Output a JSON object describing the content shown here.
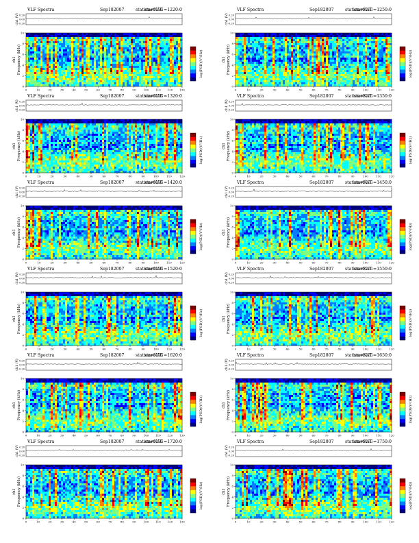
{
  "page": {
    "title": "VLF spectra grid, station KAG, Sep 18 2007"
  },
  "common": {
    "header_left": "VLF Spectra",
    "date": "Sep182007",
    "station": "station=KAG",
    "start_prefix": "start  UT  =",
    "ch_label": "ch1 (V)",
    "ch_ticks": [
      "0.20",
      "0.00",
      "-0.20"
    ],
    "y_label": "ch1\nFrequency (kHz)",
    "y_ticks": [
      "0",
      "2",
      "4",
      "6",
      "8",
      "10"
    ],
    "x_label": "Time (sec)",
    "cbar_label": "log(PSD)(V²/Hz)",
    "colormap": [
      "#00007f",
      "#0000ff",
      "#007fff",
      "#00ffff",
      "#7fff7f",
      "#ffff00",
      "#ff7f00",
      "#ff0000",
      "#7f0000"
    ]
  },
  "panels": [
    {
      "start": "1220:0",
      "xmax": 130,
      "x_ticks": [
        "0",
        "10",
        "20",
        "30",
        "40",
        "50",
        "60",
        "70",
        "80",
        "90",
        "100",
        "110",
        "120",
        "130"
      ]
    },
    {
      "start": "1250:0",
      "xmax": 120,
      "x_ticks": [
        "0",
        "10",
        "20",
        "30",
        "40",
        "50",
        "60",
        "70",
        "80",
        "90",
        "100",
        "110",
        "120"
      ]
    },
    {
      "start": "1320:0",
      "xmax": 120,
      "x_ticks": [
        "0",
        "10",
        "20",
        "30",
        "40",
        "50",
        "60",
        "70",
        "80",
        "90",
        "100",
        "110",
        "120"
      ]
    },
    {
      "start": "1350:0",
      "xmax": 120,
      "x_ticks": [
        "0",
        "10",
        "20",
        "30",
        "40",
        "50",
        "60",
        "70",
        "80",
        "90",
        "100",
        "110",
        "120"
      ]
    },
    {
      "start": "1420:0",
      "xmax": 120,
      "x_ticks": [
        "0",
        "10",
        "20",
        "30",
        "40",
        "50",
        "60",
        "70",
        "80",
        "90",
        "100",
        "110",
        "120"
      ]
    },
    {
      "start": "1450:0",
      "xmax": 120,
      "x_ticks": [
        "0",
        "10",
        "20",
        "30",
        "40",
        "50",
        "60",
        "70",
        "80",
        "90",
        "100",
        "110",
        "120"
      ]
    },
    {
      "start": "1520:0",
      "xmax": 120,
      "x_ticks": [
        "0",
        "10",
        "20",
        "30",
        "40",
        "50",
        "60",
        "70",
        "80",
        "90",
        "100",
        "110",
        "120"
      ]
    },
    {
      "start": "1550:0",
      "xmax": 120,
      "x_ticks": [
        "0",
        "10",
        "20",
        "30",
        "40",
        "50",
        "60",
        "70",
        "80",
        "90",
        "100",
        "110",
        "120"
      ]
    },
    {
      "start": "1620:0",
      "xmax": 130,
      "x_ticks": [
        "0",
        "10",
        "20",
        "30",
        "40",
        "50",
        "60",
        "70",
        "80",
        "90",
        "100",
        "110",
        "120",
        "130"
      ]
    },
    {
      "start": "1650:0",
      "xmax": 120,
      "x_ticks": [
        "0",
        "10",
        "20",
        "30",
        "40",
        "50",
        "60",
        "70",
        "80",
        "90",
        "100",
        "110",
        "120"
      ]
    },
    {
      "start": "1720:0",
      "xmax": 130,
      "x_ticks": [
        "0",
        "10",
        "20",
        "30",
        "40",
        "50",
        "60",
        "70",
        "80",
        "90",
        "100",
        "110",
        "120",
        "130"
      ]
    },
    {
      "start": "1750:0",
      "xmax": 120,
      "x_ticks": [
        "0",
        "10",
        "20",
        "30",
        "40",
        "50",
        "60",
        "70",
        "80",
        "90",
        "100",
        "110",
        "120"
      ]
    }
  ],
  "chart_data": {
    "type": "heatmap",
    "description_axis": {
      "x": "Time (sec)",
      "y": "Frequency (kHz)",
      "ylim": [
        0,
        10
      ],
      "channel_ylim": [
        -0.2,
        0.2
      ]
    },
    "panels_count": 12
  }
}
